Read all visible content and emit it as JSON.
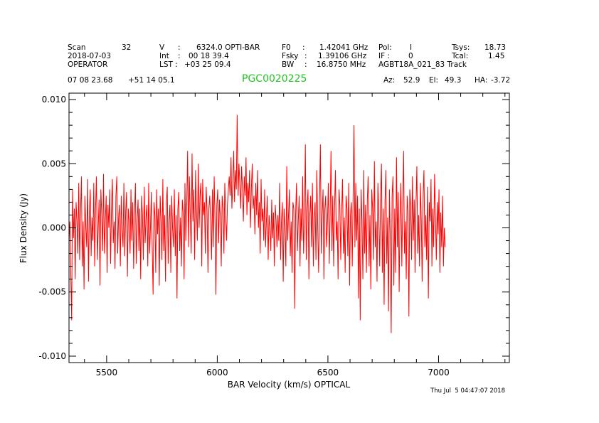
{
  "header": {
    "row1": [
      {
        "text": "Scan"
      },
      {
        "text": "32"
      },
      {
        "text": "V"
      },
      {
        "text": ":"
      },
      {
        "text": "6324.0 OPTI-BAR"
      },
      {
        "text": "F0"
      },
      {
        "text": ":"
      },
      {
        "text": "1.42041 GHz"
      },
      {
        "text": "Pol:"
      },
      {
        "text": "I"
      },
      {
        "text": "Tsys:"
      },
      {
        "text": "18.73"
      }
    ],
    "row2": [
      {
        "text": "2018-07-03"
      },
      {
        "text": "Int"
      },
      {
        "text": ":"
      },
      {
        "text": "00 18 39.4"
      },
      {
        "text": "Fsky"
      },
      {
        "text": ":"
      },
      {
        "text": "1.39106 GHz"
      },
      {
        "text": "IF :"
      },
      {
        "text": "0"
      },
      {
        "text": "Tcal:"
      },
      {
        "text": "1.45"
      }
    ],
    "row3": [
      {
        "text": "OPERATOR"
      },
      {
        "text": "LST :"
      },
      {
        "text": "+03 25 09.4"
      },
      {
        "text": "BW"
      },
      {
        "text": ":"
      },
      {
        "text": "16.8750 MHz"
      },
      {
        "text": "AGBT18A_021_83 Track"
      }
    ],
    "row4": [
      {
        "text": "07 08 23.68"
      },
      {
        "text": "+51 14 05.1"
      },
      {
        "text": "Az:"
      },
      {
        "text": "52.9"
      },
      {
        "text": "El:"
      },
      {
        "text": "49.3"
      },
      {
        "text": "HA:"
      },
      {
        "text": "-3.72"
      }
    ],
    "source_name": "PGC0020225"
  },
  "timestamp": "Thu Jul  5 04:47:07 2018",
  "chart_data": {
    "type": "line",
    "xlabel": "BAR Velocity (km/s) OPTICAL",
    "ylabel": "Flux Density (Jy)",
    "xlim": [
      5330,
      7320
    ],
    "ylim": [
      -0.0105,
      0.0105
    ],
    "xticks": [
      5500,
      6000,
      6500,
      7000
    ],
    "xtick_labels": [
      "5500",
      "6000",
      "6500",
      "7000"
    ],
    "yticks": [
      -0.01,
      -0.005,
      0.0,
      0.005,
      0.01
    ],
    "ytick_labels": [
      "-0.010",
      "-0.005",
      "0.000",
      "0.005",
      "0.010"
    ],
    "series_color": "#ff0000",
    "series": [
      {
        "x_start": 5330,
        "x_step": 4.0,
        "values": [
          -0.001,
          0.0005,
          -0.0035,
          -0.0072,
          0.003,
          -0.0008,
          0.0015,
          -0.004,
          0.002,
          0.0005,
          -0.002,
          0.0035,
          -0.0025,
          0.001,
          0.004,
          -0.003,
          0.0005,
          -0.0048,
          0.0025,
          0.0,
          -0.0015,
          0.0038,
          -0.0042,
          0.0012,
          0.003,
          -0.0022,
          0.0008,
          -0.001,
          0.0035,
          -0.003,
          0.0015,
          0.004,
          -0.0025,
          0.0,
          0.0022,
          -0.0045,
          0.003,
          0.001,
          -0.0018,
          0.0042,
          -0.002,
          0.0005,
          0.0025,
          -0.0035,
          0.0018,
          0.0,
          0.003,
          -0.0028,
          0.0015,
          0.0038,
          -0.0012,
          0.0005,
          -0.0032,
          0.0025,
          0.004,
          -0.002,
          0.0008,
          0.0018,
          -0.003,
          0.0025,
          0.0,
          -0.0015,
          0.0035,
          -0.0022,
          0.0012,
          0.0028,
          -0.0038,
          0.0015,
          0.0005,
          -0.002,
          0.003,
          -0.001,
          0.002,
          -0.0032,
          0.001,
          0.0035,
          -0.0028,
          0.0005,
          0.0022,
          -0.0018,
          0.0015,
          -0.004,
          0.0025,
          0.001,
          -0.0025,
          0.0032,
          -0.0012,
          0.0008,
          0.0018,
          -0.003,
          0.0035,
          -0.002,
          0.0,
          0.0028,
          -0.0015,
          -0.0052,
          0.002,
          0.001,
          -0.0035,
          0.003,
          -0.0005,
          0.0015,
          -0.0045,
          0.0025,
          0.0005,
          -0.0025,
          0.0038,
          -0.0018,
          0.001,
          -0.0042,
          0.002,
          0.0032,
          -0.0028,
          0.0005,
          0.0018,
          -0.0035,
          0.0025,
          0.0,
          -0.0015,
          0.003,
          -0.0022,
          0.001,
          -0.0055,
          0.0015,
          0.0028,
          -0.0018,
          0.0008,
          -0.003,
          0.0022,
          0.0012,
          -0.004,
          0.0035,
          -0.001,
          0.0018,
          0.006,
          -0.0015,
          0.004,
          0.001,
          -0.002,
          0.0058,
          0.0005,
          0.003,
          -0.0025,
          0.0045,
          0.0015,
          -0.001,
          0.005,
          0.0,
          0.0025,
          0.0035,
          -0.003,
          0.0038,
          0.001,
          0.002,
          -0.002,
          0.0032,
          0.0012,
          -0.0035,
          0.0015,
          0.0025,
          0.0005,
          -0.0025,
          0.003,
          -0.0015,
          0.004,
          0.0005,
          -0.0052,
          0.0018,
          0.003,
          -0.0012,
          0.0022,
          0.0008,
          -0.003,
          0.0025,
          0.0015,
          -0.002,
          0.0035,
          0.001,
          -0.001,
          0.0018,
          0.003,
          0.004,
          0.0025,
          0.0055,
          0.0015,
          0.0035,
          0.006,
          0.002,
          0.0045,
          0.003,
          0.0088,
          0.0025,
          0.005,
          0.0035,
          0.0015,
          0.0048,
          0.003,
          0.0005,
          0.004,
          0.0025,
          0.0055,
          0.001,
          0.0035,
          0.002,
          0.0045,
          0.0,
          0.003,
          0.005,
          0.0015,
          0.0025,
          -0.0005,
          0.0035,
          0.001,
          0.0045,
          0.0,
          0.002,
          -0.002,
          0.0038,
          0.0005,
          0.0015,
          -0.001,
          0.003,
          -0.0015,
          0.0005,
          0.0025,
          -0.0025,
          0.001,
          0.0,
          -0.0018,
          0.0022,
          -0.0008,
          0.0012,
          -0.003,
          0.0018,
          0.0005,
          -0.0015,
          0.001,
          -0.001,
          0.0035,
          -0.0025,
          0.0005,
          0.002,
          -0.0042,
          0.0015,
          0.0,
          -0.003,
          0.0048,
          -0.001,
          0.001,
          0.003,
          -0.0022,
          0.0005,
          -0.0035,
          0.002,
          0.0015,
          -0.0063,
          0.001,
          0.0035,
          -0.0018,
          0.0005,
          0.0025,
          -0.003,
          0.0015,
          -0.001,
          0.004,
          -0.002,
          0.0005,
          0.0065,
          -0.0025,
          0.0015,
          0.003,
          -0.004,
          0.001,
          0.0025,
          -0.0015,
          0.0035,
          -0.003,
          0.0005,
          0.002,
          -0.0025,
          0.0045,
          0.0,
          -0.0035,
          0.002,
          0.0065,
          -0.002,
          0.001,
          0.003,
          -0.004,
          0.0015,
          0.0025,
          -0.0015,
          0.0005,
          0.0035,
          -0.0028,
          0.001,
          0.006,
          -0.0018,
          0.0025,
          -0.003,
          0.0015,
          0.0045,
          -0.001,
          0.0005,
          -0.004,
          0.003,
          0.0018,
          -0.0025,
          0.0012,
          0.0038,
          -0.002,
          0.0008,
          -0.0035,
          0.0025,
          0.0015,
          -0.0022,
          0.0035,
          -0.0045,
          0.001,
          0.002,
          -0.003,
          0.0028,
          0.008,
          -0.0015,
          0.0035,
          -0.001,
          0.0025,
          -0.0055,
          0.0015,
          -0.0072,
          0.003,
          0.0005,
          -0.004,
          0.0045,
          -0.002,
          0.0018,
          -0.0035,
          0.0022,
          0.004,
          -0.003,
          0.001,
          -0.0048,
          0.003,
          0.0015,
          -0.0025,
          0.0052,
          -0.0015,
          0.0005,
          -0.0042,
          0.0035,
          0.001,
          -0.003,
          0.0025,
          0.005,
          -0.0035,
          0.0015,
          -0.006,
          0.002,
          0.0045,
          -0.0028,
          0.0008,
          -0.0065,
          0.003,
          -0.001,
          -0.0082,
          0.0025,
          0.004,
          -0.0045,
          0.0015,
          -0.0035,
          0.0055,
          -0.0015,
          0.0028,
          -0.005,
          0.001,
          0.0035,
          -0.003,
          0.0018,
          0.006,
          -0.002,
          0.0005,
          -0.004,
          0.0025,
          0.0012,
          -0.0069,
          0.003,
          0.0015,
          -0.0025,
          0.004,
          -0.001,
          0.0022,
          -0.0035,
          0.0018,
          0.0048,
          -0.002,
          0.001,
          -0.003,
          0.0035,
          0.0005,
          -0.0042,
          0.0025,
          0.0045,
          -0.0015,
          0.001,
          -0.0025,
          0.0032,
          -0.0055,
          0.002,
          0.0005,
          0.0038,
          -0.003,
          0.0015,
          -0.0015,
          0.0042,
          0.0008,
          -0.0025,
          0.002,
          -0.0005,
          0.003,
          -0.0035,
          0.0012,
          -0.0015,
          0.0025,
          -0.003,
          0.0,
          -0.0015
        ]
      }
    ]
  }
}
